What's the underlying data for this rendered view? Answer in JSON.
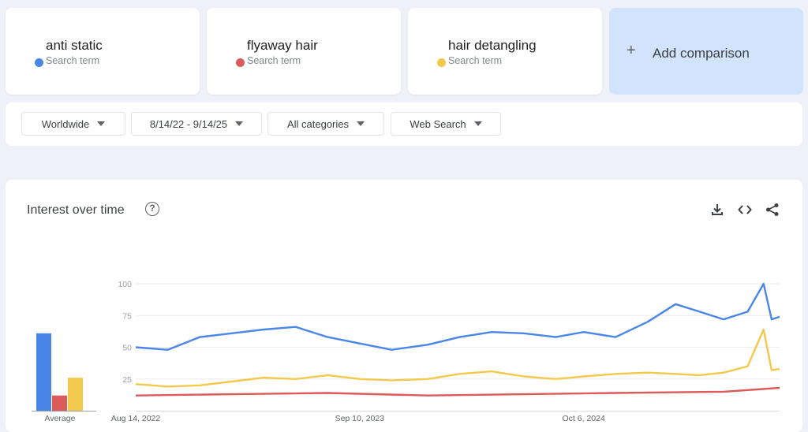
{
  "terms": [
    {
      "name": "anti static",
      "sub": "Search term",
      "color": "#4a86e8"
    },
    {
      "name": "flyaway hair",
      "sub": "Search term",
      "color": "#db5a5a"
    },
    {
      "name": "hair detangling",
      "sub": "Search term",
      "color": "#f2c94c"
    }
  ],
  "add_comparison": {
    "label": "Add comparison",
    "icon": "plus-icon"
  },
  "filters": {
    "region": "Worldwide",
    "date_range": "8/14/22 - 9/14/25",
    "category": "All categories",
    "search_type": "Web Search"
  },
  "panel": {
    "title": "Interest over time",
    "icons": [
      "help-icon",
      "download-icon",
      "embed-icon",
      "share-icon"
    ]
  },
  "chart_data": [
    {
      "type": "bar",
      "categories": [
        "anti static",
        "flyaway hair",
        "hair detangling"
      ],
      "values": [
        61,
        12,
        26
      ],
      "xlabel": "Average",
      "ylim": [
        0,
        100
      ],
      "colors": [
        "#4a86e8",
        "#db5a5a",
        "#f2c94c"
      ]
    },
    {
      "type": "line",
      "xlim": [
        "2022-08-14",
        "2025-09-14"
      ],
      "x_ticks": [
        "Aug 14, 2022",
        "Sep 10, 2023",
        "Oct 6, 2024"
      ],
      "x_tick_dates": [
        "2022-08-14",
        "2023-09-10",
        "2024-10-06"
      ],
      "ylim": [
        0,
        100
      ],
      "y_ticks": [
        25,
        50,
        75,
        100
      ],
      "grid": true,
      "series": [
        {
          "name": "anti static",
          "color": "#4a86e8",
          "points": [
            [
              "2022-08-14",
              50
            ],
            [
              "2022-10-09",
              48
            ],
            [
              "2022-12-04",
              58
            ],
            [
              "2023-01-29",
              61
            ],
            [
              "2023-03-26",
              64
            ],
            [
              "2023-05-21",
              66
            ],
            [
              "2023-07-16",
              58
            ],
            [
              "2023-09-10",
              53
            ],
            [
              "2023-11-05",
              48
            ],
            [
              "2024-01-07",
              52
            ],
            [
              "2024-03-03",
              58
            ],
            [
              "2024-04-28",
              62
            ],
            [
              "2024-06-23",
              61
            ],
            [
              "2024-08-18",
              58
            ],
            [
              "2024-10-06",
              62
            ],
            [
              "2024-12-01",
              58
            ],
            [
              "2025-01-26",
              70
            ],
            [
              "2025-03-16",
              84
            ],
            [
              "2025-04-27",
              78
            ],
            [
              "2025-06-08",
              72
            ],
            [
              "2025-07-20",
              78
            ],
            [
              "2025-08-17",
              100
            ],
            [
              "2025-08-31",
              72
            ],
            [
              "2025-09-14",
              74
            ]
          ]
        },
        {
          "name": "flyaway hair",
          "color": "#db5a5a",
          "points": [
            [
              "2022-08-14",
              12
            ],
            [
              "2023-01-29",
              13
            ],
            [
              "2023-07-16",
              14
            ],
            [
              "2024-01-07",
              12
            ],
            [
              "2024-06-23",
              13
            ],
            [
              "2024-12-01",
              14
            ],
            [
              "2025-06-08",
              15
            ],
            [
              "2025-09-14",
              18
            ]
          ]
        },
        {
          "name": "hair detangling",
          "color": "#f2c94c",
          "points": [
            [
              "2022-08-14",
              21
            ],
            [
              "2022-10-09",
              19
            ],
            [
              "2022-12-04",
              20
            ],
            [
              "2023-01-29",
              23
            ],
            [
              "2023-03-26",
              26
            ],
            [
              "2023-05-21",
              25
            ],
            [
              "2023-07-16",
              28
            ],
            [
              "2023-09-10",
              25
            ],
            [
              "2023-11-05",
              24
            ],
            [
              "2024-01-07",
              25
            ],
            [
              "2024-03-03",
              29
            ],
            [
              "2024-04-28",
              31
            ],
            [
              "2024-06-23",
              27
            ],
            [
              "2024-08-18",
              25
            ],
            [
              "2024-10-06",
              27
            ],
            [
              "2024-12-01",
              29
            ],
            [
              "2025-01-26",
              30
            ],
            [
              "2025-03-16",
              29
            ],
            [
              "2025-04-27",
              28
            ],
            [
              "2025-06-08",
              30
            ],
            [
              "2025-07-20",
              35
            ],
            [
              "2025-08-17",
              64
            ],
            [
              "2025-08-31",
              32
            ],
            [
              "2025-09-14",
              33
            ]
          ]
        }
      ]
    }
  ]
}
